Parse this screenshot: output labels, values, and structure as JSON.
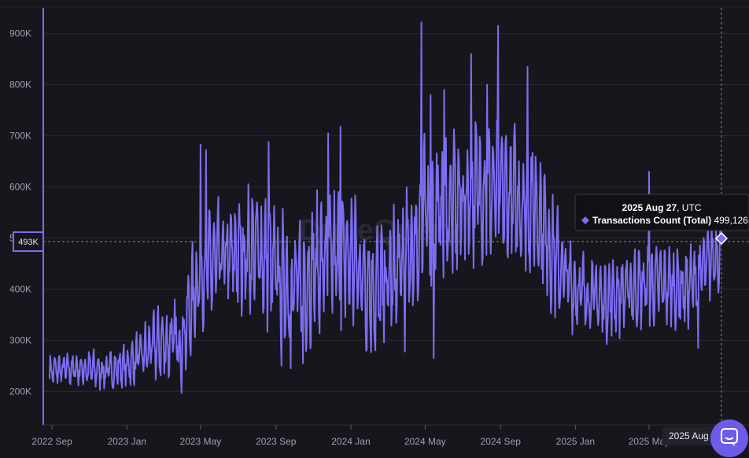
{
  "chart_data": {
    "type": "line",
    "title": "",
    "xlabel": "",
    "ylabel": "",
    "x_range": [
      "2022-08-28",
      "2025-08-27"
    ],
    "ylim": [
      165000,
      935000
    ],
    "grid": "horizontal",
    "x_ticks": [
      "2022 Sep",
      "2023 Jan",
      "2023 May",
      "2023 Sep",
      "2024 Jan",
      "2024 May",
      "2024 Sep",
      "2025 Jan",
      "2025 May"
    ],
    "y_ticks": [
      "200K",
      "300K",
      "400K",
      "500K",
      "600K",
      "700K",
      "800K",
      "900K"
    ],
    "y_tick_values": [
      200000,
      300000,
      400000,
      500000,
      600000,
      700000,
      800000,
      900000
    ],
    "crosshair": {
      "y_label": "493K",
      "y_value": 493000,
      "x_label": "2025 Aug 27"
    },
    "tooltip": {
      "date": "2025 Aug 27",
      "tz": ", UTC",
      "series": "Transactions Count (Total)",
      "value": "499,126",
      "numeric_value": 499126
    },
    "line_color": "#7b6ef0",
    "series": [
      {
        "name": "Transactions Count (Total)",
        "anchors_x": [
          "2022-08-28",
          "2022-10-15",
          "2022-12-01",
          "2023-01-01",
          "2023-02-15",
          "2023-04-01",
          "2023-05-01",
          "2023-06-15",
          "2023-08-01",
          "2023-09-01",
          "2023-10-01",
          "2023-11-15",
          "2024-01-01",
          "2024-02-15",
          "2024-04-01",
          "2024-05-01",
          "2024-06-15",
          "2024-08-01",
          "2024-09-15",
          "2024-11-01",
          "2024-12-01",
          "2025-01-01",
          "2025-02-15",
          "2025-04-01",
          "2025-05-15",
          "2025-07-01",
          "2025-08-27"
        ],
        "anchors_y": [
          240000,
          245000,
          240000,
          250000,
          290000,
          300000,
          440000,
          460000,
          480000,
          430000,
          400000,
          450000,
          460000,
          390000,
          450000,
          540000,
          560000,
          600000,
          580000,
          560000,
          450000,
          400000,
          380000,
          400000,
          410000,
          400000,
          480000
        ],
        "amplitude_x": [
          "2022-08-28",
          "2023-01-01",
          "2023-05-01",
          "2023-09-01",
          "2024-05-01",
          "2024-11-01",
          "2025-01-01",
          "2025-08-27"
        ],
        "amplitude_y": [
          35000,
          45000,
          120000,
          140000,
          170000,
          150000,
          90000,
          80000
        ],
        "spikes": [
          {
            "date": "2023-05-01",
            "y": 683000
          },
          {
            "date": "2023-05-10",
            "y": 672000
          },
          {
            "date": "2023-08-20",
            "y": 688000
          },
          {
            "date": "2023-09-10",
            "y": 250000
          },
          {
            "date": "2023-09-25",
            "y": 245000
          },
          {
            "date": "2023-10-15",
            "y": 255000
          },
          {
            "date": "2023-11-25",
            "y": 705000
          },
          {
            "date": "2023-12-15",
            "y": 718000
          },
          {
            "date": "2024-02-10",
            "y": 280000
          },
          {
            "date": "2024-04-25",
            "y": 922000
          },
          {
            "date": "2024-05-10",
            "y": 780000
          },
          {
            "date": "2024-05-15",
            "y": 265000
          },
          {
            "date": "2024-06-01",
            "y": 790000
          },
          {
            "date": "2024-07-15",
            "y": 860000
          },
          {
            "date": "2024-08-10",
            "y": 800000
          },
          {
            "date": "2024-08-28",
            "y": 915000
          },
          {
            "date": "2024-10-15",
            "y": 835000
          },
          {
            "date": "2025-05-01",
            "y": 630000
          },
          {
            "date": "2025-07-20",
            "y": 285000
          },
          {
            "date": "2025-08-27",
            "y": 499126
          }
        ]
      }
    ]
  },
  "watermark": "DuneQuery",
  "help_button": "help-chat"
}
